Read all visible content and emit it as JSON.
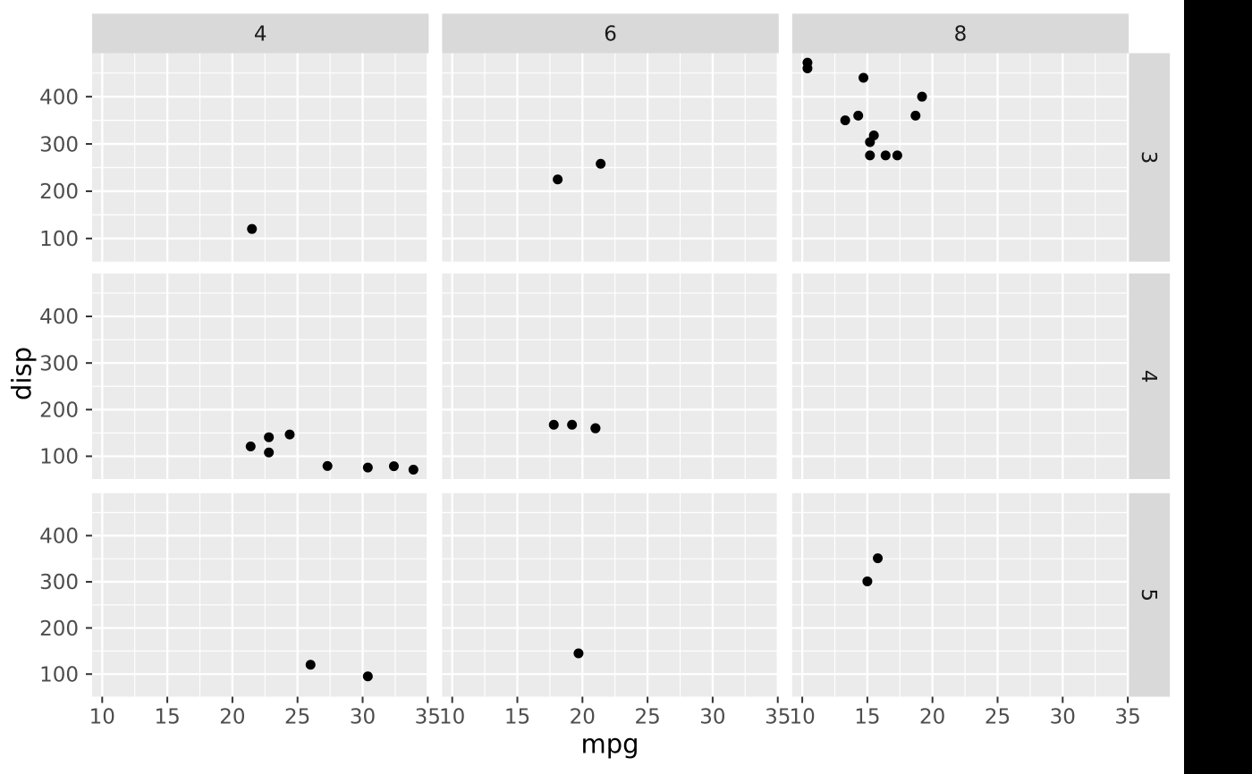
{
  "chart_data": {
    "type": "scatter",
    "title": "",
    "xlabel": "mpg",
    "ylabel": "disp",
    "legend": "none",
    "grid": true,
    "x_ticks": [
      10,
      15,
      20,
      25,
      30,
      35
    ],
    "y_ticks": [
      100,
      200,
      300,
      400
    ],
    "x_minor_ticks": [
      12.5,
      17.5,
      22.5,
      27.5,
      32.5
    ],
    "y_minor_ticks": [
      150,
      250,
      350,
      450
    ],
    "xlim": [
      9.225,
      35.075
    ],
    "ylim": [
      51.05,
      492.05
    ],
    "facet": {
      "col_strip_labels": [
        "4",
        "6",
        "8"
      ],
      "row_strip_labels": [
        "3",
        "4",
        "5"
      ]
    },
    "panels": [
      {
        "col": 0,
        "row": 0,
        "points": [
          [
            21.5,
            120.1
          ]
        ]
      },
      {
        "col": 1,
        "row": 0,
        "points": [
          [
            21.4,
            258
          ],
          [
            18.1,
            225
          ]
        ]
      },
      {
        "col": 2,
        "row": 0,
        "points": [
          [
            10.4,
            472
          ],
          [
            10.4,
            460
          ],
          [
            14.7,
            440
          ],
          [
            19.2,
            400
          ],
          [
            18.7,
            360
          ],
          [
            14.3,
            360
          ],
          [
            13.3,
            350
          ],
          [
            15.5,
            318
          ],
          [
            15.2,
            304
          ],
          [
            16.4,
            275.8
          ],
          [
            17.3,
            275.8
          ],
          [
            15.2,
            275.8
          ]
        ]
      },
      {
        "col": 0,
        "row": 1,
        "points": [
          [
            22.8,
            108
          ],
          [
            24.4,
            146.7
          ],
          [
            22.8,
            140.8
          ],
          [
            32.4,
            78.7
          ],
          [
            30.4,
            75.7
          ],
          [
            33.9,
            71.1
          ],
          [
            27.3,
            79
          ],
          [
            21.4,
            121
          ]
        ]
      },
      {
        "col": 1,
        "row": 1,
        "points": [
          [
            21.0,
            160
          ],
          [
            21.0,
            160
          ],
          [
            19.2,
            167.6
          ],
          [
            17.8,
            167.6
          ]
        ]
      },
      {
        "col": 2,
        "row": 1,
        "points": []
      },
      {
        "col": 0,
        "row": 2,
        "points": [
          [
            26.0,
            120.3
          ],
          [
            30.4,
            95.1
          ]
        ]
      },
      {
        "col": 1,
        "row": 2,
        "points": [
          [
            19.7,
            145
          ]
        ]
      },
      {
        "col": 2,
        "row": 2,
        "points": [
          [
            15.8,
            351
          ],
          [
            15.0,
            301
          ]
        ]
      }
    ]
  },
  "colors": {
    "panel_bg": "#EBEBEB",
    "strip_bg": "#D9D9D9",
    "grid_line": "#FFFFFF",
    "tick_mark": "#333333",
    "tick_label": "#4D4D4D",
    "strip_label": "#1A1A1A",
    "axis_title": "#000000",
    "point": "#000000",
    "figure_bg": "#FFFFFF",
    "right_band": "#000000"
  }
}
